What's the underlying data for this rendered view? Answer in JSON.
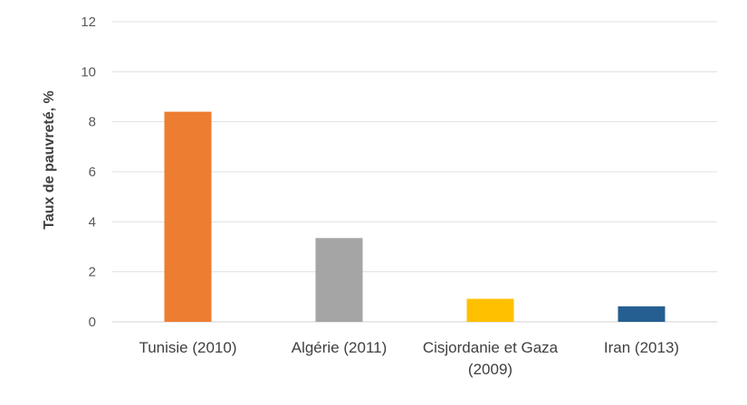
{
  "chart_data": {
    "type": "bar",
    "title": "",
    "xlabel": "",
    "ylabel": "Taux de pauvreté, %",
    "ylim": [
      0,
      12
    ],
    "yticks": [
      0,
      2,
      4,
      6,
      8,
      10,
      12
    ],
    "grid": true,
    "legend": "none",
    "categories": [
      {
        "label_lines": [
          "Tunisie (2010)"
        ],
        "value": 8.4,
        "color": "#ED7D31"
      },
      {
        "label_lines": [
          "Algérie (2011)"
        ],
        "value": 3.35,
        "color": "#A5A5A5"
      },
      {
        "label_lines": [
          "Cisjordanie et Gaza",
          "(2009)"
        ],
        "value": 0.92,
        "color": "#FFC000"
      },
      {
        "label_lines": [
          "Iran (2013)"
        ],
        "value": 0.62,
        "color": "#255E91"
      }
    ]
  }
}
